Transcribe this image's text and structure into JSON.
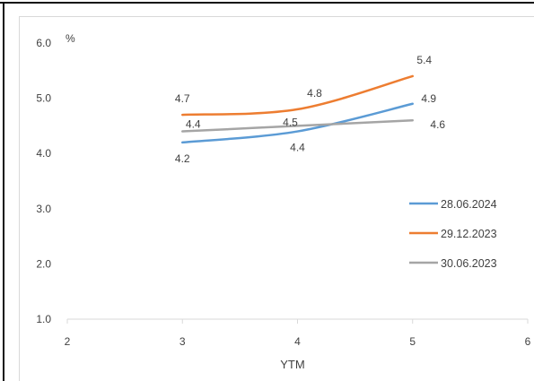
{
  "chart_data": {
    "type": "line",
    "title": "",
    "ylabel": "%",
    "xlabel": "YTM",
    "xlim": [
      2,
      6
    ],
    "ylim": [
      1.0,
      6.0
    ],
    "x_ticks": [
      "2",
      "3",
      "4",
      "5",
      "6"
    ],
    "y_ticks": [
      "1.0",
      "2.0",
      "3.0",
      "4.0",
      "5.0",
      "6.0"
    ],
    "grid": false,
    "legend_position": "right",
    "series": [
      {
        "name": "28.06.2024",
        "color": "#5b9bd5",
        "x": [
          3,
          4,
          5
        ],
        "values": [
          4.2,
          4.4,
          4.9
        ],
        "labels": [
          "4.2",
          "4.4",
          "4.9"
        ]
      },
      {
        "name": "29.12.2023",
        "color": "#ed7d31",
        "x": [
          3,
          4,
          5
        ],
        "values": [
          4.7,
          4.8,
          5.4
        ],
        "labels": [
          "4.7",
          "4.8",
          "5.4"
        ]
      },
      {
        "name": "30.06.2023",
        "color": "#a5a5a5",
        "x": [
          3,
          4,
          5
        ],
        "values": [
          4.4,
          4.5,
          4.6
        ],
        "labels": [
          "4.4",
          "4.5",
          "4.6"
        ]
      }
    ]
  }
}
